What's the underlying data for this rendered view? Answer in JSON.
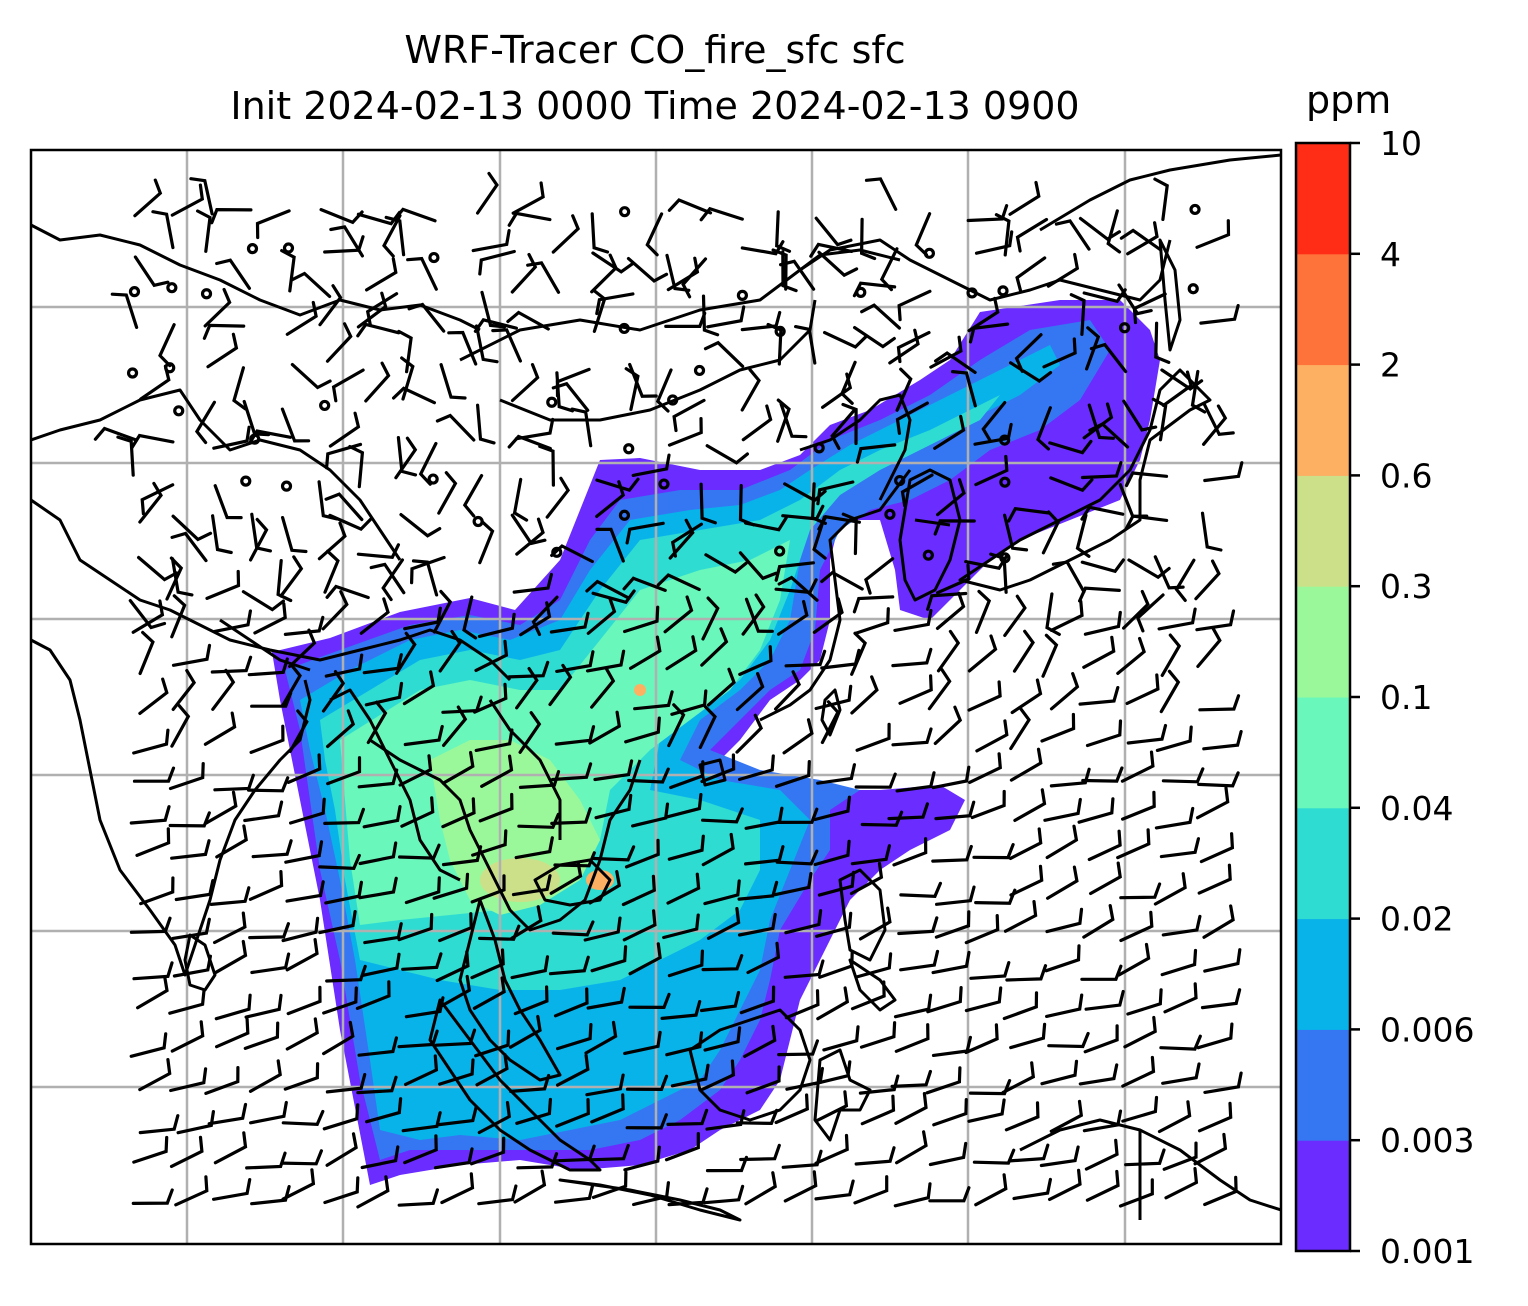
{
  "title_line1": "WRF-Tracer CO_fire_sfc sfc",
  "title_line2": "Init 2024-02-13 0000 Time 2024-02-13 0900",
  "chart_data": {
    "type": "heatmap",
    "title": "WRF-Tracer CO_fire_sfc sfc",
    "subtitle": "Init 2024-02-13 0000 Time 2024-02-13 0900",
    "variable": "CO_fire_sfc",
    "level": "sfc",
    "overlay": "wind barbs",
    "grid": true,
    "colorbar": {
      "unit": "ppm",
      "placement": "right",
      "levels": [
        "0.001",
        "0.003",
        "0.006",
        "0.02",
        "0.04",
        "0.1",
        "0.3",
        "0.6",
        "2",
        "4",
        "10"
      ],
      "colors": [
        "#6a2cff",
        "#3577f2",
        "#08b3ea",
        "#2fdcd2",
        "#69f7bb",
        "#9bf89a",
        "#cce08a",
        "#fdb062",
        "#fe733a",
        "#ff2c16"
      ]
    }
  },
  "colors": {
    "plume_low": "#6a2cff",
    "plume_mid": "#3577f2",
    "plume_cyan": "#08b3ea",
    "plume_teal": "#2fdcd2",
    "plume_green": "#69f7bb",
    "plume_lime": "#9bf89a",
    "coast": "#000000",
    "grid": "#b0b0b0"
  }
}
